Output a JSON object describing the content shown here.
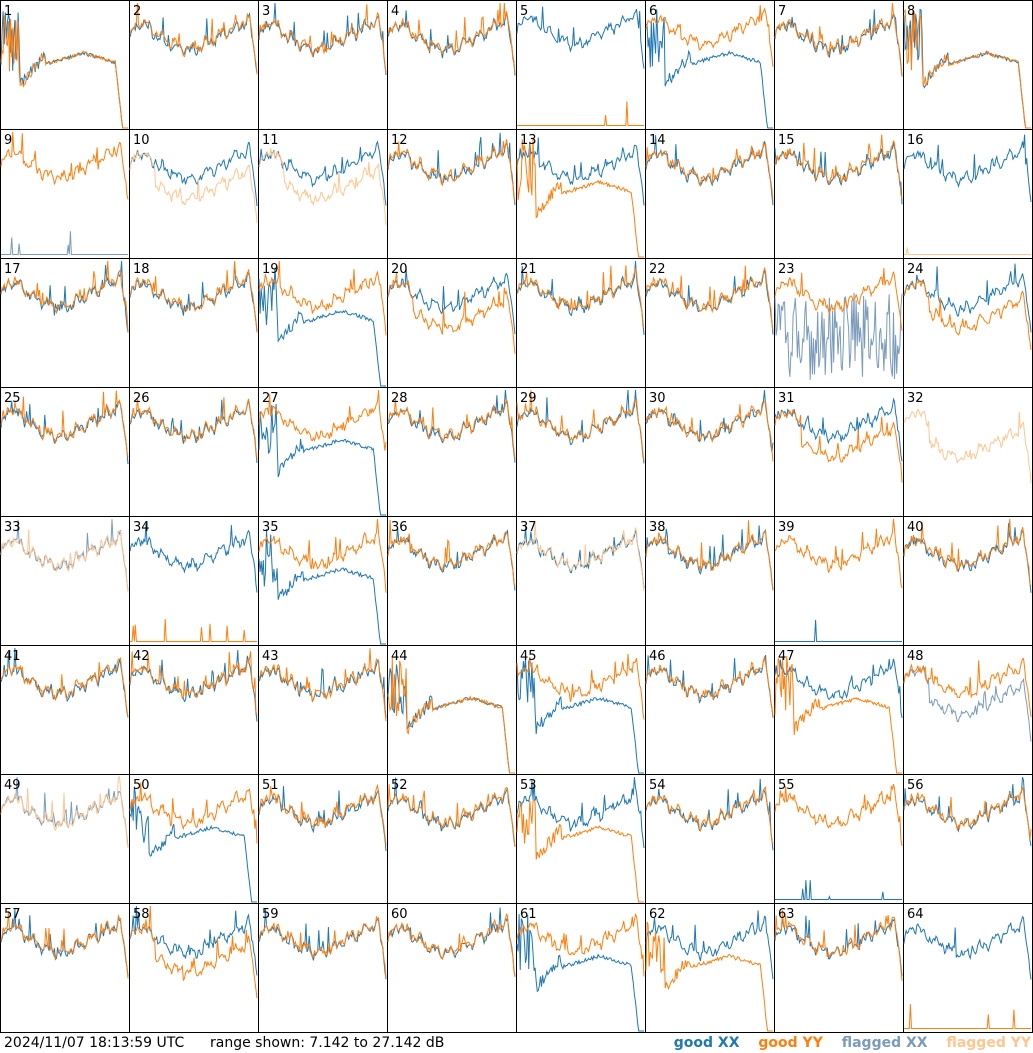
{
  "footer": {
    "timestamp": "2024/11/07 18:13:59 UTC",
    "range_text": "range shown: 7.142 to 27.142 dB"
  },
  "legend": {
    "good_xx": {
      "label": "good XX",
      "color": "#1f77b4"
    },
    "good_yy": {
      "label": "good YY",
      "color": "#ff7f0e"
    },
    "flagged_xx": {
      "label": "flagged XX",
      "color": "#7a9bbb"
    },
    "flagged_yy": {
      "label": "flagged YY",
      "color": "#ffc690"
    }
  },
  "chart_data": {
    "type": "line",
    "y_range_db": [
      7.142,
      27.142
    ],
    "grid_layout": "8x8",
    "panels": [
      {
        "label": "1",
        "xx": "odd",
        "yy": "odd"
      },
      {
        "label": "2",
        "xx": "good",
        "yy": "good"
      },
      {
        "label": "3",
        "xx": "good",
        "yy": "good"
      },
      {
        "label": "4",
        "xx": "good",
        "yy": "good"
      },
      {
        "label": "5",
        "xx": "high",
        "yy": "dead"
      },
      {
        "label": "6",
        "xx": "odd",
        "yy": "high"
      },
      {
        "label": "7",
        "xx": "good",
        "yy": "good"
      },
      {
        "label": "8",
        "xx": "odd",
        "yy": "odd"
      },
      {
        "label": "9",
        "xx": "flagged-dead",
        "yy": "good"
      },
      {
        "label": "10",
        "xx": "good",
        "yy": "flagged-low"
      },
      {
        "label": "11",
        "xx": "good",
        "yy": "flagged-low"
      },
      {
        "label": "12",
        "xx": "good",
        "yy": "good"
      },
      {
        "label": "13",
        "xx": "good",
        "yy": "odd"
      },
      {
        "label": "14",
        "xx": "good",
        "yy": "good"
      },
      {
        "label": "15",
        "xx": "good",
        "yy": "good"
      },
      {
        "label": "16",
        "xx": "good",
        "yy": "flagged-dead"
      },
      {
        "label": "17",
        "xx": "good",
        "yy": "good"
      },
      {
        "label": "18",
        "xx": "good",
        "yy": "good"
      },
      {
        "label": "19",
        "xx": "odd",
        "yy": "good"
      },
      {
        "label": "20",
        "xx": "good",
        "yy": "low"
      },
      {
        "label": "21",
        "xx": "good",
        "yy": "good"
      },
      {
        "label": "22",
        "xx": "good",
        "yy": "good"
      },
      {
        "label": "23",
        "xx": "flagged-noise",
        "yy": "good"
      },
      {
        "label": "24",
        "xx": "good",
        "yy": "low"
      },
      {
        "label": "25",
        "xx": "good",
        "yy": "good"
      },
      {
        "label": "26",
        "xx": "good",
        "yy": "good"
      },
      {
        "label": "27",
        "xx": "odd",
        "yy": "good"
      },
      {
        "label": "28",
        "xx": "good",
        "yy": "good"
      },
      {
        "label": "29",
        "xx": "good",
        "yy": "good"
      },
      {
        "label": "30",
        "xx": "good",
        "yy": "good"
      },
      {
        "label": "31",
        "xx": "good",
        "yy": "low"
      },
      {
        "label": "32",
        "xx": "none",
        "yy": "flagged-low"
      },
      {
        "label": "33",
        "xx": "flagged-good",
        "yy": "flagged-good"
      },
      {
        "label": "34",
        "xx": "good",
        "yy": "dead"
      },
      {
        "label": "35",
        "xx": "odd",
        "yy": "good"
      },
      {
        "label": "36",
        "xx": "good",
        "yy": "good"
      },
      {
        "label": "37",
        "xx": "good",
        "yy": "flagged-good"
      },
      {
        "label": "38",
        "xx": "good",
        "yy": "good"
      },
      {
        "label": "39",
        "xx": "dead",
        "yy": "good"
      },
      {
        "label": "40",
        "xx": "good",
        "yy": "good"
      },
      {
        "label": "41",
        "xx": "good",
        "yy": "good"
      },
      {
        "label": "42",
        "xx": "good",
        "yy": "good"
      },
      {
        "label": "43",
        "xx": "good",
        "yy": "good"
      },
      {
        "label": "44",
        "xx": "odd",
        "yy": "odd"
      },
      {
        "label": "45",
        "xx": "odd",
        "yy": "good"
      },
      {
        "label": "46",
        "xx": "good",
        "yy": "good"
      },
      {
        "label": "47",
        "xx": "good",
        "yy": "odd"
      },
      {
        "label": "48",
        "xx": "flagged-low",
        "yy": "good"
      },
      {
        "label": "49",
        "xx": "flagged-good",
        "yy": "flagged-good"
      },
      {
        "label": "50",
        "xx": "odd",
        "yy": "good"
      },
      {
        "label": "51",
        "xx": "good",
        "yy": "good"
      },
      {
        "label": "52",
        "xx": "good",
        "yy": "good"
      },
      {
        "label": "53",
        "xx": "good",
        "yy": "odd"
      },
      {
        "label": "54",
        "xx": "good",
        "yy": "good"
      },
      {
        "label": "55",
        "xx": "dead",
        "yy": "good"
      },
      {
        "label": "56",
        "xx": "good",
        "yy": "good"
      },
      {
        "label": "57",
        "xx": "good",
        "yy": "good"
      },
      {
        "label": "58",
        "xx": "good",
        "yy": "low"
      },
      {
        "label": "59",
        "xx": "good",
        "yy": "good"
      },
      {
        "label": "60",
        "xx": "good",
        "yy": "good"
      },
      {
        "label": "61",
        "xx": "odd",
        "yy": "good"
      },
      {
        "label": "62",
        "xx": "good",
        "yy": "odd"
      },
      {
        "label": "63",
        "xx": "good",
        "yy": "good"
      },
      {
        "label": "64",
        "xx": "good",
        "yy": "dead"
      }
    ]
  }
}
